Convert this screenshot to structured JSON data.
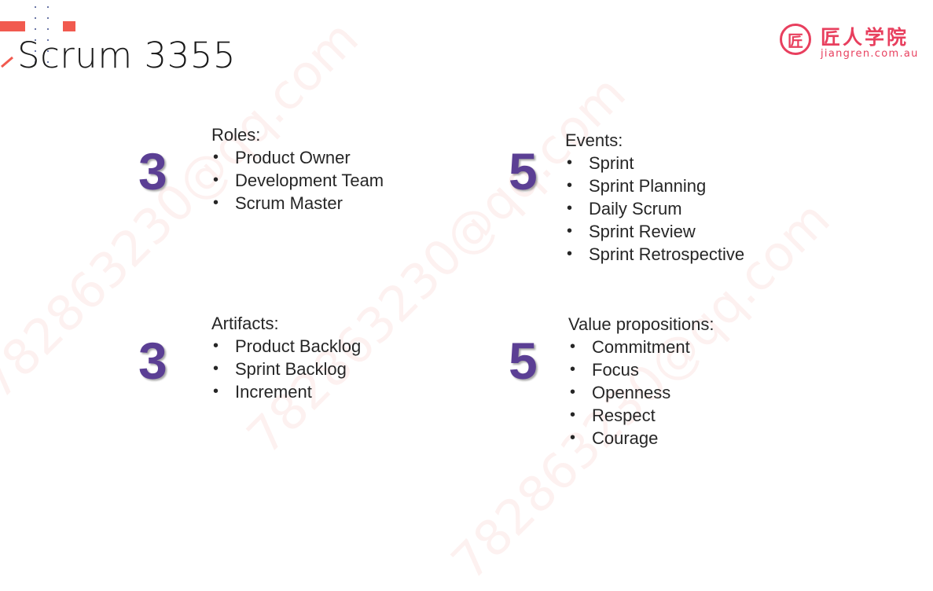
{
  "title": "Scrum 3355",
  "logo": {
    "mark": "匠",
    "name_cn": "匠人学院",
    "domain": "jiangren.com.au",
    "color": "#e83f5e"
  },
  "watermark": "782863230@qq.com",
  "accent_color": "#5b3f94",
  "sections": {
    "roles": {
      "number": "3",
      "heading": "Roles:",
      "items": [
        "Product Owner",
        "Development Team",
        "Scrum Master"
      ]
    },
    "events": {
      "number": "5",
      "heading": "Events:",
      "items": [
        "Sprint",
        "Sprint Planning",
        "Daily Scrum",
        "Sprint Review",
        "Sprint Retrospective"
      ]
    },
    "artifacts": {
      "number": "3",
      "heading": "Artifacts:",
      "items": [
        "Product Backlog",
        "Sprint Backlog",
        "Increment"
      ]
    },
    "values": {
      "number": "5",
      "heading": "Value propositions:",
      "items": [
        "Commitment",
        "Focus",
        "Openness",
        "Respect",
        "Courage"
      ]
    }
  }
}
